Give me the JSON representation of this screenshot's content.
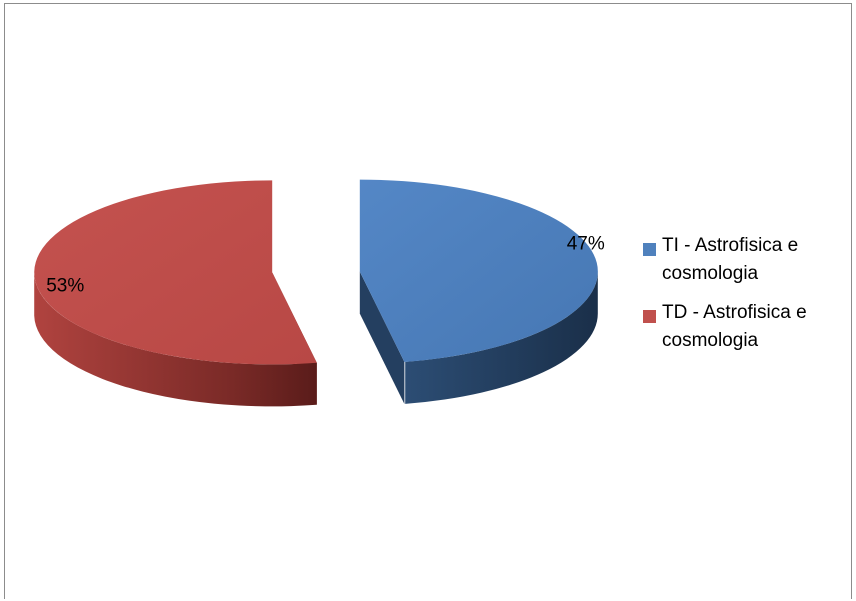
{
  "chart_data": {
    "type": "pie",
    "style": "3d-exploded",
    "title": "",
    "legend_position": "right",
    "slices": [
      {
        "label": "TI - Astrofisica e cosmologia",
        "value": 47,
        "display": "47%",
        "color": "#4f81bd"
      },
      {
        "label": "TD - Astrofisica e cosmologia",
        "value": 53,
        "display": "53%",
        "color": "#c0504d"
      }
    ]
  }
}
